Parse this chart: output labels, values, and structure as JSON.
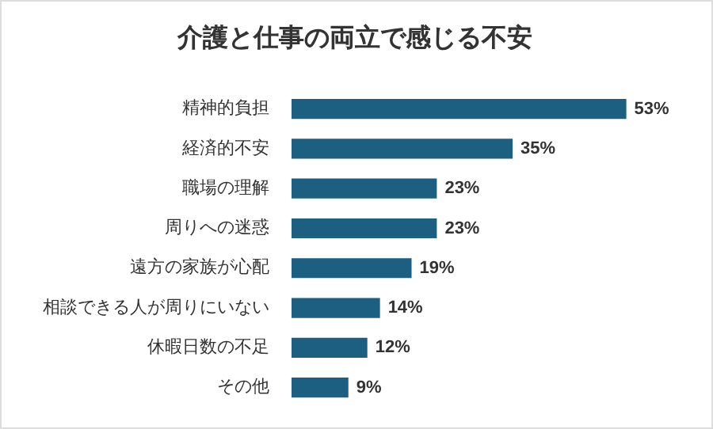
{
  "chart_data": {
    "type": "bar",
    "orientation": "horizontal",
    "title": "介護と仕事の両立で感じる不安",
    "categories": [
      "精神的負担",
      "経済的不安",
      "職場の理解",
      "周りへの迷惑",
      "遠方の家族が心配",
      "相談できる人が周りにいない",
      "休暇日数の不足",
      "その他"
    ],
    "values": [
      53,
      35,
      23,
      23,
      19,
      14,
      12,
      9
    ],
    "value_labels": [
      "53%",
      "35%",
      "23%",
      "23%",
      "19%",
      "14%",
      "12%",
      "9%"
    ],
    "color": "#1d5f80",
    "legend": false
  }
}
